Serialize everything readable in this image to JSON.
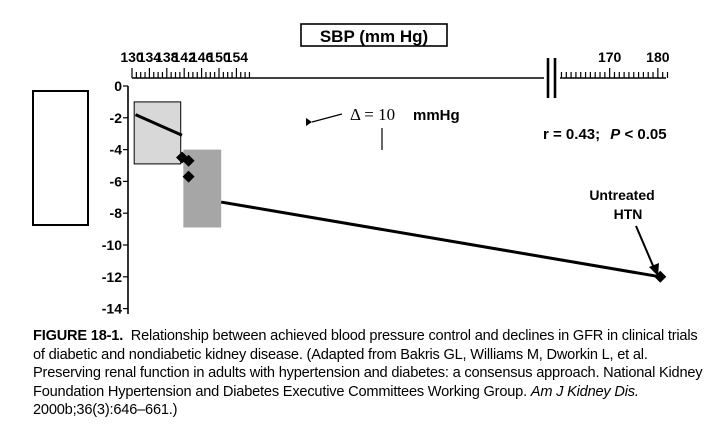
{
  "chart_data": {
    "type": "scatter",
    "title": "",
    "xlabel": "SBP (mm Hg)",
    "ylabel": "",
    "x_ticks": [
      "130",
      "134",
      "138",
      "142",
      "146",
      "150",
      "154",
      "170",
      "180"
    ],
    "y_ticks": [
      "0",
      "-2",
      "-4",
      "-6",
      "-8",
      "-10",
      "-12",
      "-14"
    ],
    "x_axis_break": "between 156 and 165",
    "xlim": [
      130,
      182
    ],
    "ylim": [
      -14,
      0
    ],
    "points": [
      {
        "x": 141.5,
        "y": -4.5
      },
      {
        "x": 143.0,
        "y": -4.7
      },
      {
        "x": 143.0,
        "y": -5.7
      },
      {
        "x": 180.5,
        "y": -12.0
      }
    ],
    "regression_segments": [
      {
        "x": [
          130.8,
          141.5
        ],
        "y": [
          -1.8,
          -3.1
        ]
      },
      {
        "x": [
          150.5,
          180.5
        ],
        "y": [
          -7.3,
          -12.0
        ]
      }
    ],
    "regions": [
      {
        "x": [
          130.5,
          141.2
        ],
        "y": [
          -1.0,
          -4.9
        ]
      },
      {
        "x": [
          141.8,
          150.5
        ],
        "y": [
          -4.0,
          -8.9
        ]
      }
    ],
    "annotations": {
      "delta_symbol": "Δ = 10",
      "delta_unit": "mmHg",
      "stat_r": "r = 0.43;",
      "stat_p_letter": "P",
      "stat_p_rest": " < 0.05",
      "untreated_line1": "Untreated",
      "untreated_line2": "HTN"
    },
    "colors": {
      "light_box": "#d8d8d8",
      "dark_box": "#a6a6a6",
      "ink": "#000000"
    }
  },
  "caption": {
    "label": "FIGURE 18-1.",
    "text": "Relationship between achieved blood pressure control and declines in GFR in clinical trials of diabetic and nondiabetic kidney disease. (Adapted from Bakris GL, Williams M, Dworkin L, et al. Preserving renal function in adults with hypertension and diabetes: a consensus approach. National Kidney Foundation Hypertension and Diabetes Executive Committees Working Group. ",
    "journal": "Am J Kidney Dis.",
    "citation_tail": " 2000b;36(3):646–661.)"
  }
}
